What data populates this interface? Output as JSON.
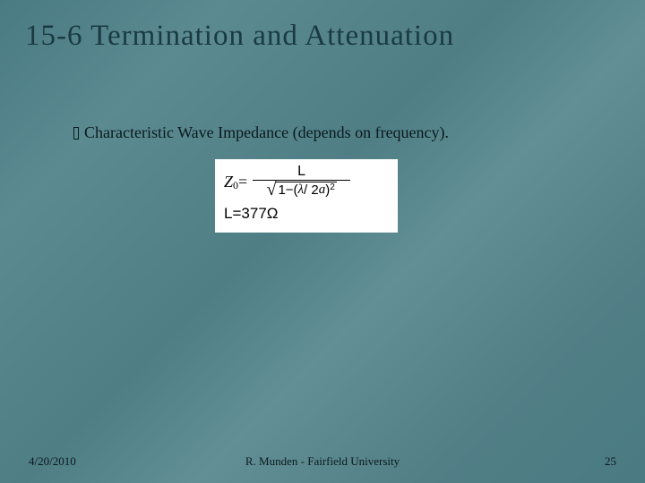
{
  "slide": {
    "title": "15-6 Termination and Attenuation",
    "bullet_glyph": "",
    "bullet_text": "Characteristic Wave Impedance (depends on frequency).",
    "formula": {
      "lhs_symbol": "Z",
      "lhs_sub": "0",
      "equals": " = ",
      "numerator": "L",
      "denom_prefix": "1",
      "denom_minus": "−",
      "denom_open": "(",
      "lambda": "λ",
      "slash2a": " / 2",
      "a_var": "a",
      "denom_close": ")",
      "denom_exp": "2",
      "line2_L": "L",
      "line2_eq": " = ",
      "line2_val": "377",
      "line2_ohm": "Ω"
    },
    "footer": {
      "date": "4/20/2010",
      "center": "R. Munden - Fairfield University",
      "page": "25"
    },
    "colors": {
      "background_base": "#4f7e85",
      "title_color": "#1a3a42",
      "body_text": "#0a1a1e",
      "formula_bg": "#ffffff"
    }
  }
}
